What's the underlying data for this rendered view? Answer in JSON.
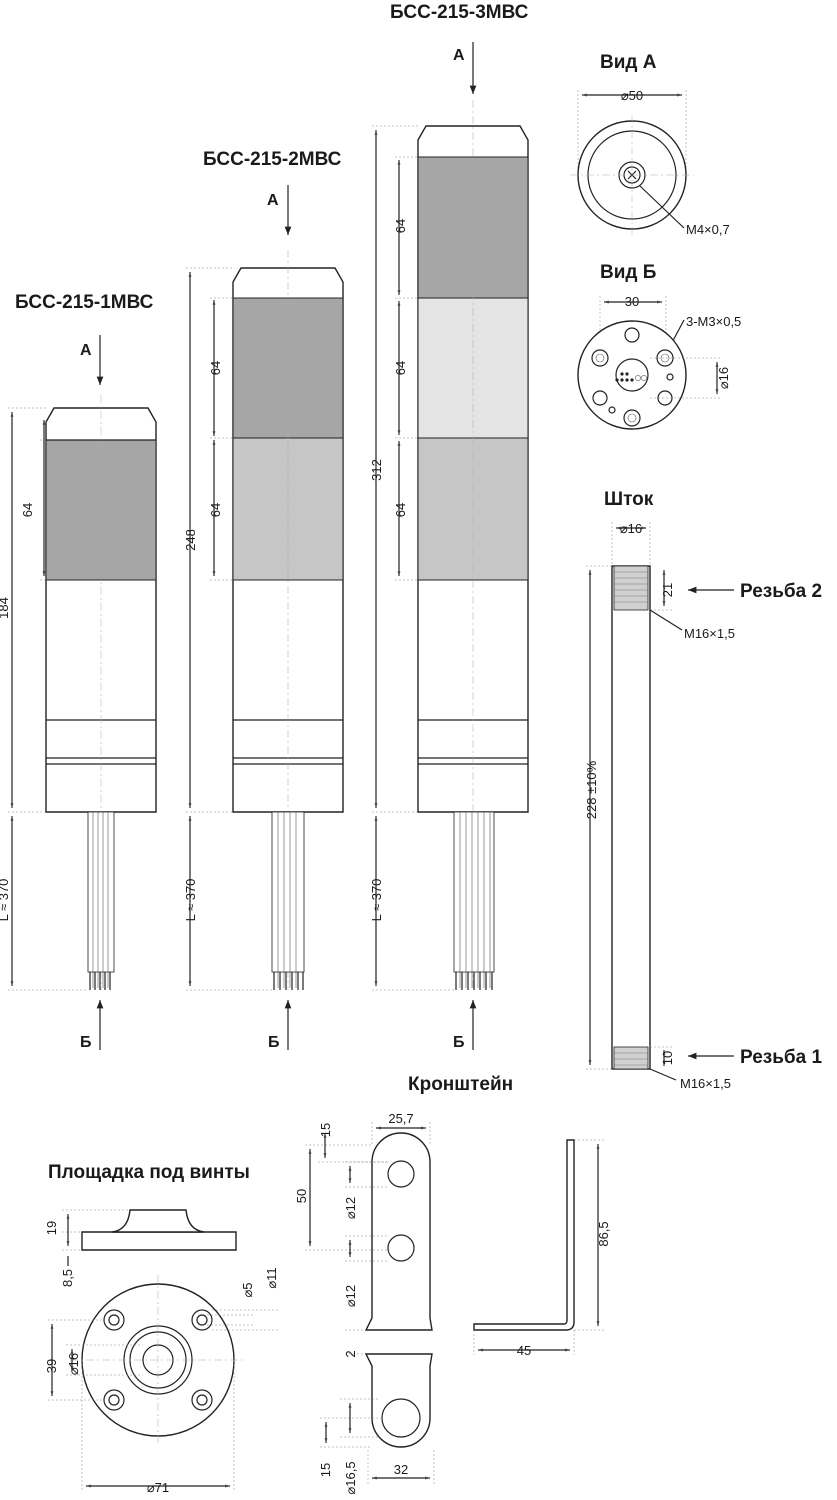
{
  "titles": {
    "bss1": "БСС-215-1МВС",
    "bss2": "БСС-215-2МВС",
    "bss3": "БСС-215-3МВС",
    "view_a": "Вид А",
    "view_b": "Вид Б",
    "rod": "Шток",
    "bracket": "Кронштейн",
    "pad": "Площадка под винты"
  },
  "arrows": {
    "a": "А",
    "b": "Б"
  },
  "dims": {
    "d64": "64",
    "h184": "184",
    "h248": "248",
    "h312": "312",
    "cable": "L ≈ 370",
    "va_diam": "⌀50",
    "va_thread": "M4×0,7",
    "vb_30": "30",
    "vb_screws": "3-M3×0,5",
    "vb_diam": "⌀16",
    "rod_diam": "⌀16",
    "rod_21": "21",
    "rod_len": "228 ±10%",
    "rod_10": "10",
    "thread_top": "M16×1,5",
    "thread_bot": "M16×1,5",
    "rezba2": "Резьба 2",
    "rezba1": "Резьба 1",
    "br_width": "25,7",
    "br_15": "15",
    "br_50": "50",
    "br_d12a": "⌀12",
    "br_d12b": "⌀12",
    "br_2": "2",
    "br_15b": "15",
    "br_d16": "⌀16,5",
    "br_32": "32",
    "br_86": "86,5",
    "br_45": "45",
    "pad_19": "19",
    "pad_85": "8,5",
    "pad_d5": "⌀5",
    "pad_d11": "⌀11",
    "pad_39": "39",
    "pad_d16": "⌀16",
    "pad_d71": "⌀71"
  },
  "colors": {
    "seg_dark": "#a6a6a6",
    "seg_mid": "#c6c6c6",
    "seg_light": "#e4e4e4",
    "line": "#222222"
  }
}
